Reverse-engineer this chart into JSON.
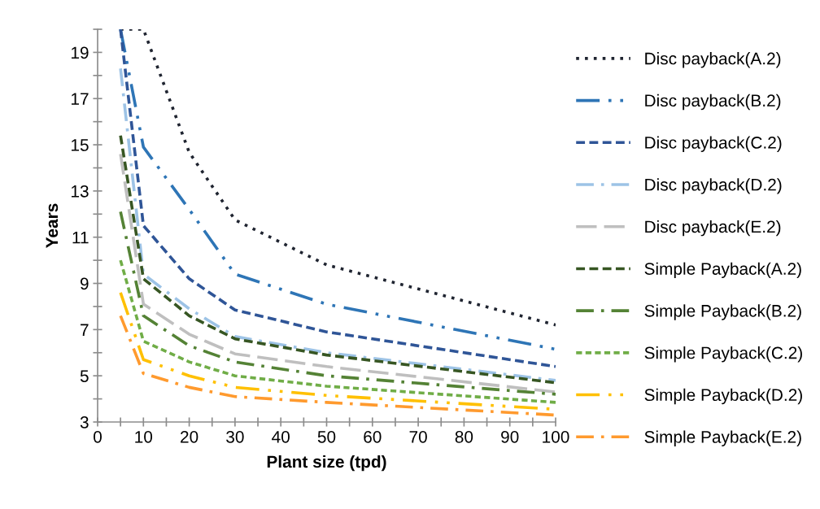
{
  "chart_data": {
    "type": "line",
    "xlabel": "Plant size (tpd)",
    "ylabel": "Years",
    "x": [
      5,
      10,
      20,
      30,
      50,
      100
    ],
    "xlim": [
      0,
      100
    ],
    "ylim": [
      3,
      20
    ],
    "xticks": [
      0,
      {
        "value": 5,
        "label": null
      },
      10,
      {
        "value": 15,
        "label": null
      },
      20,
      {
        "value": 25,
        "label": null
      },
      30,
      {
        "value": 35,
        "label": null
      },
      40,
      {
        "value": 45,
        "label": null
      },
      50,
      {
        "value": 55,
        "label": null
      },
      60,
      {
        "value": 65,
        "label": null
      },
      70,
      {
        "value": 75,
        "label": null
      },
      80,
      {
        "value": 85,
        "label": null
      },
      90,
      {
        "value": 95,
        "label": null
      },
      100
    ],
    "yticks": [
      3,
      {
        "value": 4,
        "label": null
      },
      5,
      {
        "value": 6,
        "label": null
      },
      7,
      {
        "value": 8,
        "label": null
      },
      9,
      {
        "value": 10,
        "label": null
      },
      11,
      {
        "value": 12,
        "label": null
      },
      13,
      {
        "value": 14,
        "label": null
      },
      15,
      {
        "value": 16,
        "label": null
      },
      17,
      {
        "value": 18,
        "label": null
      },
      19,
      {
        "value": 20,
        "label": null
      }
    ],
    "grid": false,
    "legend": "right",
    "marker": "none",
    "series": [
      {
        "name": "Disc payback(A.2)",
        "color": "#1f2430",
        "line_style": "dotted",
        "values": [
          20,
          20,
          14.67,
          11.75,
          9.8,
          7.2
        ]
      },
      {
        "name": "Disc payback(B.2)",
        "color": "#2e75b6",
        "line_style": "dashdotdot",
        "values": [
          20,
          14.9,
          12.2,
          9.4,
          8.1,
          6.15
        ]
      },
      {
        "name": "Disc payback(C.2)",
        "color": "#2f5597",
        "line_style": "dashed",
        "values": [
          20,
          11.5,
          9.2,
          7.85,
          6.9,
          5.4
        ]
      },
      {
        "name": "Disc payback(D.2)",
        "color": "#9dc3e6",
        "line_style": "dashdot",
        "values": [
          18.3,
          9.4,
          7.9,
          6.7,
          6.0,
          4.8
        ]
      },
      {
        "name": "Disc payback(E.2)",
        "color": "#bfbfbf",
        "line_style": "longdash",
        "values": [
          14.6,
          8.1,
          6.8,
          5.95,
          5.4,
          4.3
        ]
      },
      {
        "name": "Simple Payback(A.2)",
        "color": "#375623",
        "line_style": "dashed",
        "values": [
          15.4,
          9.2,
          7.6,
          6.6,
          5.9,
          4.7
        ]
      },
      {
        "name": "Simple Payback(B.2)",
        "color": "#548235",
        "line_style": "dashdot",
        "values": [
          12.1,
          7.6,
          6.3,
          5.6,
          5.0,
          4.2
        ]
      },
      {
        "name": "Simple Payback(C.2)",
        "color": "#70ad47",
        "line_style": "shortdash",
        "values": [
          10.0,
          6.5,
          5.6,
          5.0,
          4.55,
          3.85
        ]
      },
      {
        "name": "Simple Payback(D.2)",
        "color": "#ffc000",
        "line_style": "dashdotdot",
        "values": [
          8.6,
          5.7,
          5.0,
          4.5,
          4.15,
          3.55
        ]
      },
      {
        "name": "Simple Payback(E.2)",
        "color": "#ff9a2e",
        "line_style": "dashdot",
        "values": [
          7.6,
          5.1,
          4.5,
          4.1,
          3.85,
          3.3
        ]
      }
    ]
  }
}
